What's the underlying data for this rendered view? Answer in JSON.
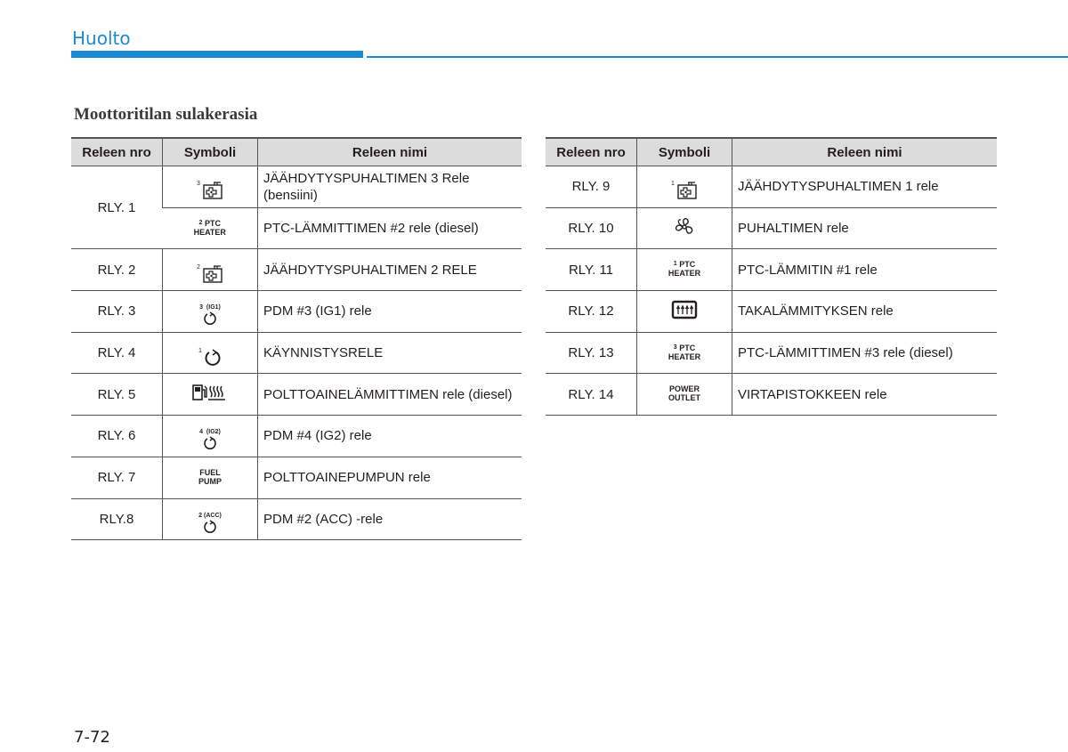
{
  "header": {
    "title": "Huolto"
  },
  "section_title": "Moottoritilan sulakerasia",
  "columns": {
    "num": "Releen nro",
    "sym": "Symboli",
    "name": "Releen nimi"
  },
  "left": [
    {
      "num": "RLY. 1",
      "rows": [
        {
          "symbol_icon": "radiator-fan-icon",
          "sup": "3",
          "name": "JÄÄHDYTYSPUHALTIMEN 3 Rele (bensiini)"
        },
        {
          "symbol_icon": "text-symbol",
          "sup": "2",
          "sym_text1": "PTC",
          "sym_text2": "HEATER",
          "name": "PTC-LÄMMITTIMEN #2 rele (diesel)"
        }
      ]
    },
    {
      "num": "RLY. 2",
      "symbol_icon": "radiator-fan-icon",
      "sup": "2",
      "name": "JÄÄHDYTYSPUHALTIMEN 2 RELE"
    },
    {
      "num": "RLY. 3",
      "symbol_icon": "ignition-icon",
      "sup": "3",
      "sym_label": "(IG1)",
      "name": "PDM #3 (IG1) rele"
    },
    {
      "num": "RLY. 4",
      "symbol_icon": "ignition-icon",
      "sup": "1",
      "name": "KÄYNNISTYSRELE"
    },
    {
      "num": "RLY. 5",
      "symbol_icon": "fuel-heater-icon",
      "name": "POLTTOAINELÄMMITTIMEN rele (diesel)"
    },
    {
      "num": "RLY. 6",
      "symbol_icon": "ignition-icon",
      "sup": "4",
      "sym_label": "(IG2)",
      "name": "PDM #4 (IG2) rele"
    },
    {
      "num": "RLY. 7",
      "symbol_icon": "text-symbol",
      "sym_text1": "FUEL",
      "sym_text2": "PUMP",
      "name": "POLTTOAINEPUMPUN rele"
    },
    {
      "num": "RLY.8",
      "symbol_icon": "ignition-icon",
      "sup": "2",
      "sym_label": "(ACC)",
      "name": "PDM #2 (ACC) -rele"
    }
  ],
  "right": [
    {
      "num": "RLY. 9",
      "symbol_icon": "radiator-fan-icon",
      "sup": "1",
      "name": "JÄÄHDYTYSPUHALTIMEN 1 rele"
    },
    {
      "num": "RLY. 10",
      "symbol_icon": "blower-fan-icon",
      "name": "PUHALTIMEN rele"
    },
    {
      "num": "RLY. 11",
      "symbol_icon": "text-symbol",
      "sup": "1",
      "sym_text1": "PTC",
      "sym_text2": "HEATER",
      "name": "PTC-LÄMMITIN #1 rele"
    },
    {
      "num": "RLY. 12",
      "symbol_icon": "rear-defrost-icon",
      "name": "TAKALÄMMITYKSEN rele"
    },
    {
      "num": "RLY. 13",
      "symbol_icon": "text-symbol",
      "sup": "3",
      "sym_text1": "PTC",
      "sym_text2": "HEATER",
      "name": "PTC-LÄMMITTIMEN #3 rele (diesel)"
    },
    {
      "num": "RLY. 14",
      "symbol_icon": "text-symbol",
      "sym_text1": "POWER",
      "sym_text2": "OUTLET",
      "name": "VIRTAPISTOKKEEN rele"
    }
  ],
  "page_number": "7-72",
  "colors": {
    "accent": "#1a8ad4",
    "header_fill": "#dcdcdc"
  }
}
